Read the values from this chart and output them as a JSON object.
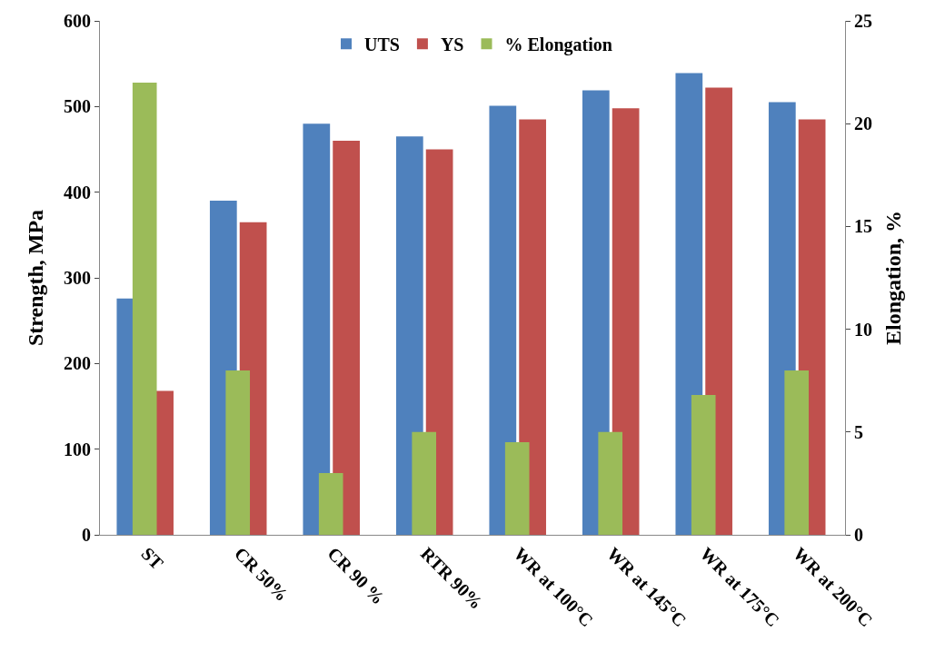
{
  "chart_data": {
    "type": "bar",
    "ylabel": "Strength, MPa",
    "y2label": "Elongation, %",
    "categories": [
      "ST",
      "CR 50%",
      "CR 90 %",
      "RTR 90%",
      "WR at 100°C",
      "WR at 145°C",
      "WR at 175°C",
      "WR at 200°C"
    ],
    "series": [
      {
        "name": "UTS",
        "color": "#4f81bd",
        "values": [
          276,
          390,
          480,
          465,
          501,
          519,
          539,
          505
        ]
      },
      {
        "name": "YS",
        "color": "#c0504d",
        "values": [
          168,
          365,
          460,
          450,
          485,
          498,
          522,
          485
        ]
      },
      {
        "name": "% Elongation",
        "color": "#9bbb59",
        "axis": "y2",
        "values": [
          22,
          8,
          3,
          5,
          4.5,
          5,
          6.8,
          8
        ]
      }
    ],
    "ylim": [
      0,
      600
    ],
    "yticks": [
      0,
      100,
      200,
      300,
      400,
      500,
      600
    ],
    "y2lim": [
      0,
      25
    ],
    "y2ticks": [
      0,
      5,
      10,
      15,
      20,
      25
    ],
    "legend": "top"
  }
}
